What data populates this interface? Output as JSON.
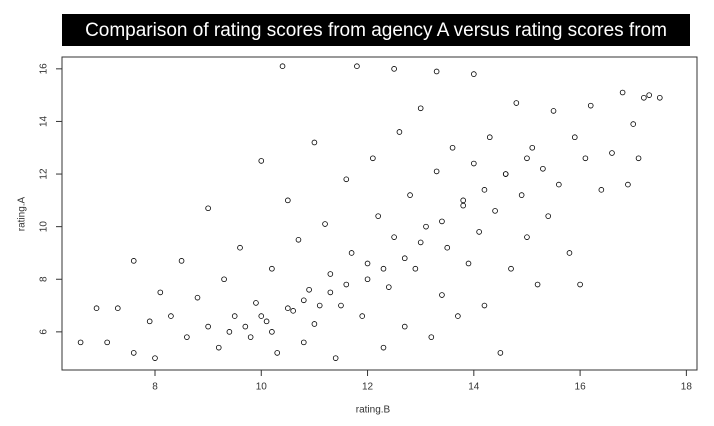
{
  "chart_data": {
    "type": "scatter",
    "title": "Comparison of rating scores from agency A versus rating scores from",
    "x_label": "rating.B",
    "y_label": "rating.A",
    "color": "#000000",
    "xlim": [
      6.25,
      18.2
    ],
    "ylim": [
      4.55,
      16.45
    ],
    "xticks": [
      8,
      10,
      12,
      14,
      16,
      18
    ],
    "yticks": [
      6,
      8,
      10,
      12,
      14,
      16
    ],
    "x": [
      6.6,
      6.9,
      7.1,
      7.3,
      7.6,
      7.6,
      7.9,
      8.0,
      8.1,
      8.3,
      8.5,
      8.6,
      8.8,
      9.0,
      9.0,
      9.2,
      9.3,
      9.5,
      9.6,
      9.8,
      9.9,
      10.0,
      10.1,
      10.2,
      10.3,
      10.4,
      10.5,
      10.6,
      10.7,
      10.8,
      10.9,
      11.0,
      11.0,
      11.2,
      11.3,
      11.4,
      11.5,
      11.6,
      11.7,
      11.8,
      11.9,
      12.0,
      12.1,
      12.2,
      12.3,
      12.4,
      12.5,
      12.5,
      12.6,
      12.7,
      12.8,
      12.9,
      13.0,
      13.1,
      13.2,
      13.3,
      13.3,
      13.4,
      13.5,
      13.6,
      13.7,
      13.8,
      13.9,
      14.0,
      14.0,
      14.1,
      14.2,
      14.3,
      14.4,
      14.5,
      14.6,
      14.7,
      14.8,
      14.9,
      15.0,
      15.1,
      15.2,
      15.3,
      15.4,
      15.5,
      15.6,
      15.8,
      15.9,
      16.0,
      16.1,
      16.2,
      16.4,
      16.6,
      16.8,
      16.9,
      17.0,
      17.1,
      17.2,
      17.3,
      17.5,
      9.4,
      9.7,
      10.0,
      10.2,
      10.5,
      10.8,
      11.1,
      11.3,
      11.6,
      12.0,
      12.3,
      12.7,
      13.0,
      13.4,
      13.8,
      14.2,
      14.6,
      15.0
    ],
    "y": [
      5.6,
      6.9,
      5.6,
      6.9,
      5.2,
      8.7,
      6.4,
      5.0,
      7.5,
      6.6,
      8.7,
      5.8,
      7.3,
      10.7,
      6.2,
      5.4,
      8.0,
      6.6,
      9.2,
      5.8,
      7.1,
      12.5,
      6.4,
      8.4,
      5.2,
      16.1,
      11.0,
      6.8,
      9.5,
      5.6,
      7.6,
      13.2,
      6.3,
      10.1,
      8.2,
      5.0,
      7.0,
      11.8,
      9.0,
      16.1,
      6.6,
      8.6,
      12.6,
      10.4,
      5.4,
      7.7,
      16.0,
      9.6,
      13.6,
      6.2,
      11.2,
      8.4,
      14.5,
      10.0,
      5.8,
      15.9,
      12.1,
      7.4,
      9.2,
      13.0,
      6.6,
      11.0,
      8.6,
      15.8,
      12.4,
      9.8,
      7.0,
      13.4,
      10.6,
      5.2,
      12.0,
      8.4,
      14.7,
      11.2,
      9.6,
      13.0,
      7.8,
      12.2,
      10.4,
      14.4,
      11.6,
      9.0,
      13.4,
      7.8,
      12.6,
      14.6,
      11.4,
      12.8,
      15.1,
      11.6,
      13.9,
      12.6,
      14.9,
      15.0,
      14.9,
      6.0,
      6.2,
      6.6,
      6.0,
      6.9,
      7.2,
      7.0,
      7.5,
      7.8,
      8.0,
      8.4,
      8.8,
      9.4,
      10.2,
      10.8,
      11.4,
      12.0,
      12.6
    ]
  }
}
